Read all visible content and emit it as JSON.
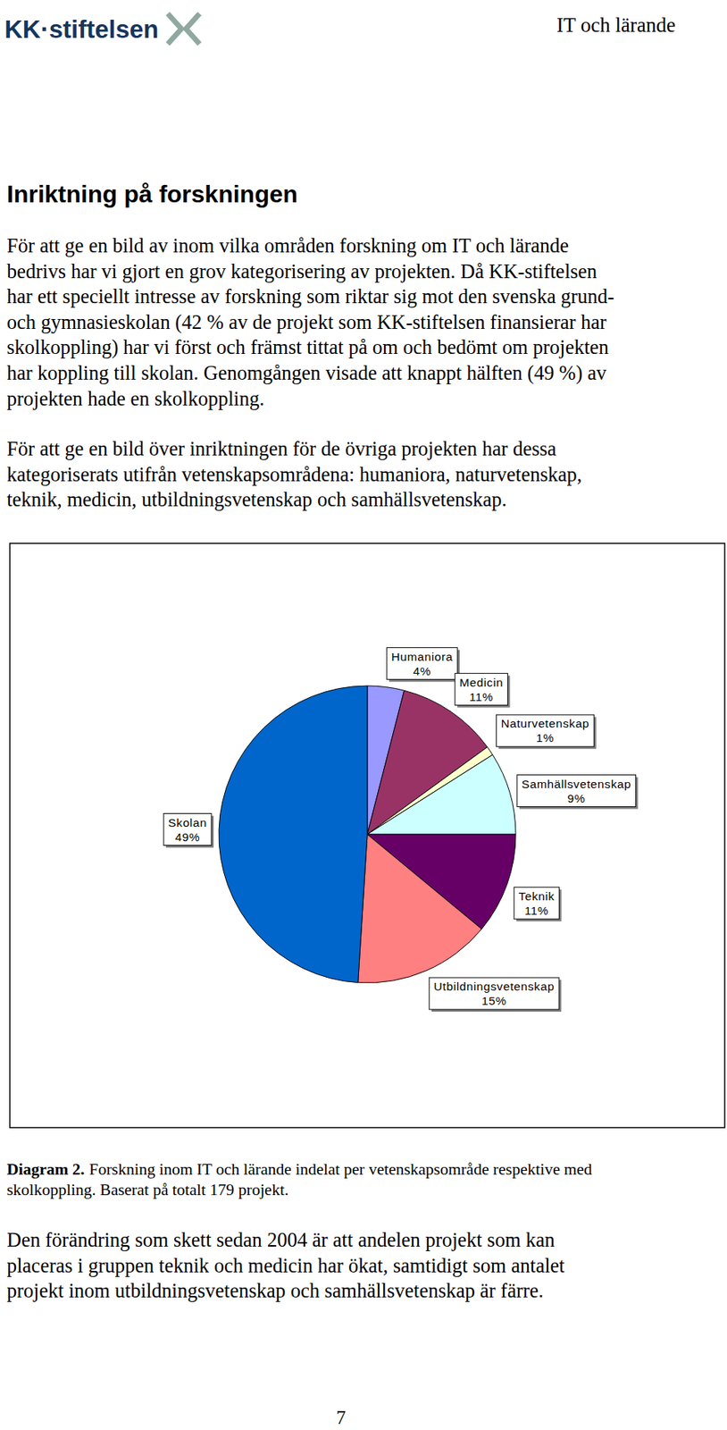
{
  "header": {
    "logo": "KK·stiftelsen",
    "title": "IT och lärande"
  },
  "heading": "Inriktning på forskningen",
  "paragraphs": [
    [
      "För att ge en bild av inom vilka områden forskning om IT och lärande",
      "bedrivs har vi gjort en grov kategorisering av projekten. Då KK-stiftelsen",
      "har ett speciellt intresse av forskning som riktar sig mot den svenska grund-",
      "och gymnasieskolan (42 % av de projekt som KK-stiftelsen finansierar har",
      "skolkoppling) har vi först och främst tittat på om och bedömt om projekten",
      "har koppling till skolan. Genomgången visade att knappt hälften (49 %) av",
      "projekten hade en skolkoppling."
    ],
    [
      "För att ge en bild över inriktningen för de övriga projekten har dessa",
      "kategoriserats utifrån vetenskapsområdena: humaniora, naturvetenskap,",
      "teknik, medicin, utbildningsvetenskap och samhällsvetenskap."
    ]
  ],
  "chart_data": {
    "type": "pie",
    "categories": [
      "Humaniora",
      "Medicin",
      "Naturvetenskap",
      "Samhällsvetenskap",
      "Teknik",
      "Utbildningsvetenskap",
      "Skolan"
    ],
    "values": [
      4,
      11,
      1,
      9,
      11,
      15,
      49
    ],
    "value_labels": [
      "4%",
      "11%",
      "1%",
      "9%",
      "11%",
      "15%",
      "49%"
    ],
    "colors": [
      "#9999ff",
      "#993366",
      "#ffffcc",
      "#ccffff",
      "#660066",
      "#ff8080",
      "#0066cc"
    ],
    "data_labels": true
  },
  "caption": {
    "label": "Diagram 2.",
    "lines": [
      "Forskning inom IT och lärande indelat per vetenskapsområde respektive med",
      "skolkoppling. Baserat på totalt 179 projekt."
    ]
  },
  "closing": [
    "Den förändring som skett sedan 2004 är att andelen projekt som kan",
    "placeras i gruppen teknik och medicin har ökat, samtidigt som antalet",
    "projekt inom utbildningsvetenskap och samhällsvetenskap är färre."
  ],
  "page_number": "7"
}
